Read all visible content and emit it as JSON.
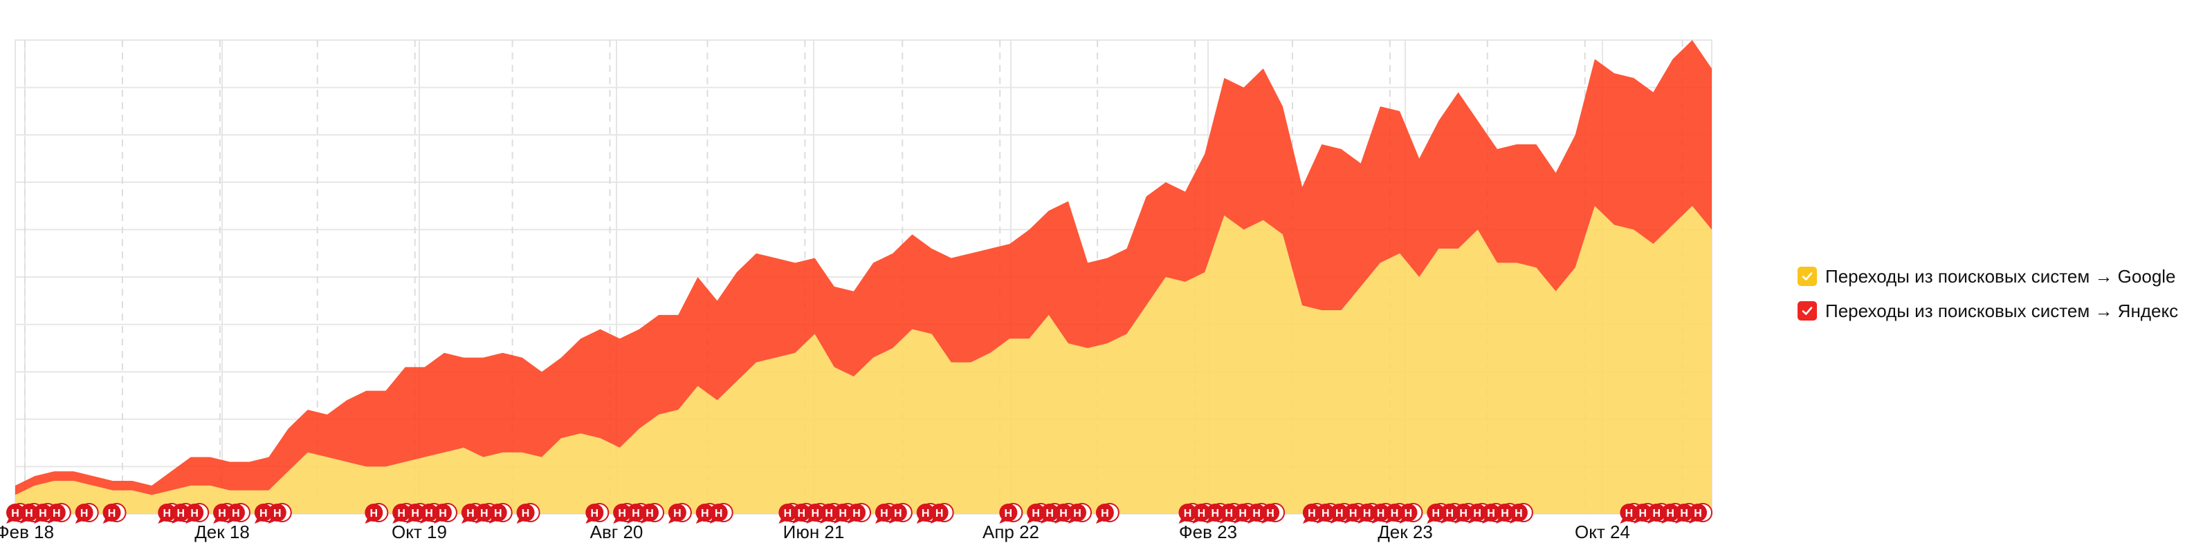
{
  "chart_data": {
    "type": "area",
    "stacked": true,
    "grid": true,
    "legend_position": "right",
    "x_tick_labels": [
      "Фев 18",
      "Дек 18",
      "Окт 19",
      "Авг 20",
      "Июн 21",
      "Апр 22",
      "Фев 23",
      "Дек 23",
      "Окт 24"
    ],
    "series": [
      {
        "name": "Переходы из поисковых систем → Google",
        "color": "#fdd863",
        "values": [
          4,
          6,
          7,
          7,
          6,
          5,
          5,
          4,
          5,
          6,
          6,
          5,
          5,
          5,
          9,
          13,
          12,
          11,
          10,
          10,
          11,
          12,
          13,
          14,
          12,
          13,
          13,
          12,
          16,
          17,
          16,
          14,
          18,
          21,
          22,
          27,
          24,
          28,
          32,
          33,
          34,
          38,
          31,
          29,
          33,
          35,
          39,
          38,
          32,
          32,
          34,
          37,
          37,
          42,
          36,
          35,
          36,
          38,
          44,
          50,
          49,
          51,
          63,
          60,
          62,
          59,
          44,
          43,
          43,
          48,
          53,
          55,
          50,
          56,
          56,
          60,
          53,
          53,
          52,
          47,
          52,
          65,
          61,
          60,
          57,
          61,
          65,
          60
        ]
      },
      {
        "name": "Переходы из поисковых систем → Яндекс",
        "color": "#fe3f1d",
        "values": [
          2,
          2,
          2,
          2,
          2,
          2,
          2,
          2,
          4,
          6,
          6,
          6,
          6,
          7,
          9,
          9,
          9,
          13,
          16,
          16,
          20,
          19,
          21,
          19,
          21,
          21,
          20,
          18,
          17,
          20,
          23,
          23,
          21,
          21,
          20,
          23,
          21,
          23,
          23,
          21,
          19,
          16,
          17,
          18,
          20,
          20,
          20,
          18,
          22,
          23,
          22,
          20,
          23,
          22,
          30,
          18,
          18,
          18,
          23,
          20,
          19,
          25,
          29,
          30,
          32,
          27,
          25,
          35,
          34,
          26,
          33,
          30,
          25,
          27,
          33,
          23,
          24,
          25,
          26,
          25,
          28,
          31,
          32,
          32,
          32,
          35,
          35,
          34
        ]
      }
    ],
    "annotation_marker": {
      "label": "H",
      "color": "#d8141c"
    }
  },
  "legend": {
    "items": [
      {
        "label": "Переходы из поисковых систем → Google",
        "color": "#f9c51c"
      },
      {
        "label": "Переходы из поисковых систем → Яндекс",
        "color": "#ee2521"
      }
    ]
  }
}
